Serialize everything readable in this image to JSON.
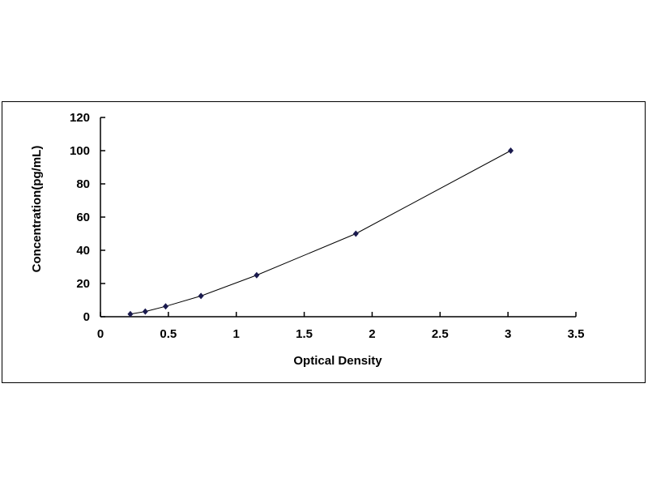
{
  "chart_data": {
    "type": "scatter",
    "title": "",
    "xlabel": "Optical Density",
    "ylabel": "Concentration(pg/mL)",
    "xlim": [
      0,
      3.5
    ],
    "ylim": [
      0,
      120
    ],
    "xticks": [
      "0",
      "0.5",
      "1",
      "1.5",
      "2",
      "2.5",
      "3",
      "3.5"
    ],
    "yticks": [
      "0",
      "20",
      "40",
      "60",
      "80",
      "100",
      "120"
    ],
    "grid": false,
    "series": [
      {
        "x": [
          0.22,
          0.33,
          0.48,
          0.74,
          1.15,
          1.88,
          3.02
        ],
        "y": [
          1.56,
          3.12,
          6.25,
          12.5,
          25,
          50,
          100
        ],
        "marker": "diamond",
        "color": "#1a1a4e",
        "trendline": true
      }
    ]
  }
}
